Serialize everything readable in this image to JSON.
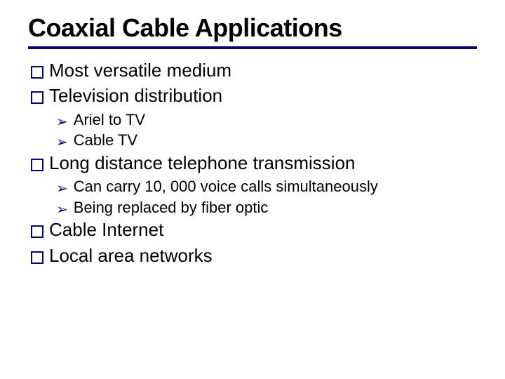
{
  "slide": {
    "title": "Coaxial Cable Applications",
    "title_color": "#000000",
    "underline_color": "#000088",
    "background_color": "#ffffff",
    "l1_marker_border_color": "#000088",
    "l2_marker_color": "#000088",
    "l1_fontsize": 26,
    "l2_fontsize": 22,
    "title_fontsize": 36,
    "bullets": [
      {
        "level": 1,
        "text": "Most versatile medium"
      },
      {
        "level": 1,
        "text": "Television distribution"
      },
      {
        "level": 2,
        "text": "Ariel to TV"
      },
      {
        "level": 2,
        "text": "Cable TV"
      },
      {
        "level": 1,
        "text": "Long distance telephone transmission"
      },
      {
        "level": 2,
        "text": "Can carry 10, 000 voice calls simultaneously"
      },
      {
        "level": 2,
        "text": "Being replaced by fiber optic"
      },
      {
        "level": 1,
        "text": "Cable Internet"
      },
      {
        "level": 1,
        "text": "Local area networks"
      }
    ]
  }
}
